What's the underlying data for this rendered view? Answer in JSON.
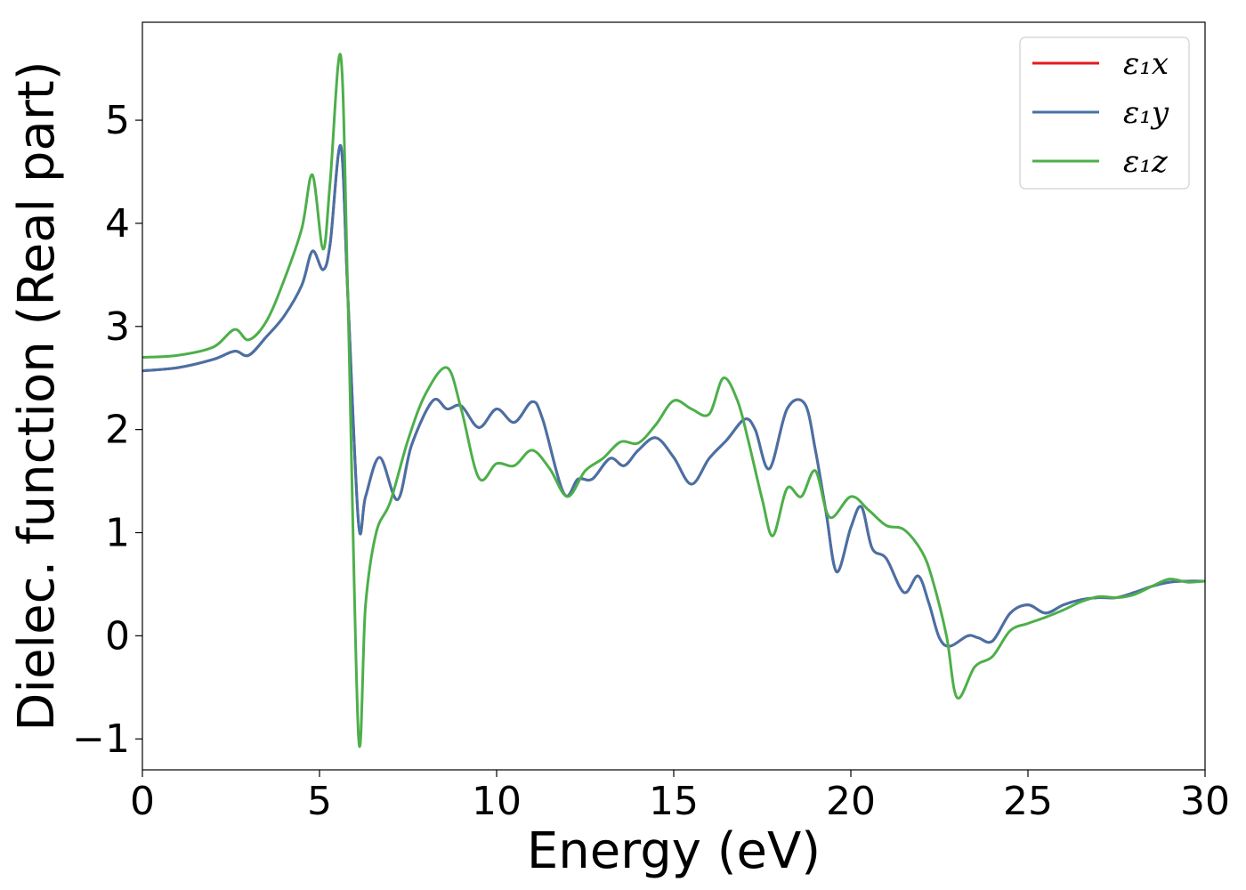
{
  "chart_data": {
    "type": "line",
    "title": "",
    "xlabel": "Energy (eV)",
    "ylabel": "Dielec. function (Real part)",
    "xlim": [
      0,
      30
    ],
    "ylim": [
      -1.3,
      5.95
    ],
    "xticks": [
      0,
      5,
      10,
      15,
      20,
      25,
      30
    ],
    "yticks": [
      -1,
      0,
      1,
      2,
      3,
      4,
      5
    ],
    "xtick_labels": [
      "0",
      "5",
      "10",
      "15",
      "20",
      "25",
      "30"
    ],
    "ytick_labels": [
      "−1",
      "0",
      "1",
      "2",
      "3",
      "4",
      "5"
    ],
    "grid": false,
    "legend_position": "top-right",
    "series": [
      {
        "name": "ε₁x",
        "color": "#e41a1c",
        "x": [
          0,
          1,
          2,
          2.6,
          3,
          3.5,
          4,
          4.5,
          4.8,
          5.1,
          5.3,
          5.6,
          5.8,
          6.1,
          6.3,
          6.7,
          7.2,
          7.6,
          8.2,
          8.6,
          9,
          9.5,
          10,
          10.5,
          11,
          11.3,
          11.9,
          12.3,
          12.7,
          13.2,
          13.6,
          14,
          14.5,
          15,
          15.5,
          16,
          16.5,
          17,
          17.3,
          17.7,
          18.2,
          18.7,
          19,
          19.3,
          19.6,
          20,
          20.3,
          20.6,
          21,
          21.5,
          21.9,
          22.2,
          22.5,
          22.8,
          23.3,
          23.6,
          24,
          24.5,
          25,
          25.5,
          26,
          26.5,
          27,
          27.5,
          28,
          28.5,
          29,
          29.5,
          30
        ],
        "y": [
          2.57,
          2.6,
          2.68,
          2.76,
          2.72,
          2.9,
          3.1,
          3.4,
          3.73,
          3.55,
          3.8,
          4.75,
          3.3,
          1.1,
          1.35,
          1.73,
          1.32,
          1.85,
          2.28,
          2.2,
          2.23,
          2.02,
          2.2,
          2.07,
          2.27,
          2.1,
          1.38,
          1.52,
          1.52,
          1.72,
          1.65,
          1.8,
          1.92,
          1.73,
          1.47,
          1.72,
          1.9,
          2.1,
          2.0,
          1.62,
          2.2,
          2.25,
          1.8,
          1.2,
          0.62,
          1.05,
          1.25,
          0.85,
          0.75,
          0.42,
          0.58,
          0.32,
          -0.02,
          -0.1,
          0.0,
          -0.02,
          -0.05,
          0.22,
          0.3,
          0.22,
          0.3,
          0.35,
          0.37,
          0.37,
          0.42,
          0.48,
          0.52,
          0.53,
          0.53
        ]
      },
      {
        "name": "ε₁y",
        "color": "#4572a7",
        "x": [
          0,
          1,
          2,
          2.6,
          3,
          3.5,
          4,
          4.5,
          4.8,
          5.1,
          5.3,
          5.6,
          5.8,
          6.1,
          6.3,
          6.7,
          7.2,
          7.6,
          8.2,
          8.6,
          9,
          9.5,
          10,
          10.5,
          11,
          11.3,
          11.9,
          12.3,
          12.7,
          13.2,
          13.6,
          14,
          14.5,
          15,
          15.5,
          16,
          16.5,
          17,
          17.3,
          17.7,
          18.2,
          18.7,
          19,
          19.3,
          19.6,
          20,
          20.3,
          20.6,
          21,
          21.5,
          21.9,
          22.2,
          22.5,
          22.8,
          23.3,
          23.6,
          24,
          24.5,
          25,
          25.5,
          26,
          26.5,
          27,
          27.5,
          28,
          28.5,
          29,
          29.5,
          30
        ],
        "y": [
          2.57,
          2.6,
          2.68,
          2.76,
          2.72,
          2.9,
          3.1,
          3.4,
          3.73,
          3.55,
          3.8,
          4.75,
          3.3,
          1.1,
          1.35,
          1.73,
          1.32,
          1.85,
          2.28,
          2.2,
          2.23,
          2.02,
          2.2,
          2.07,
          2.27,
          2.1,
          1.38,
          1.52,
          1.52,
          1.72,
          1.65,
          1.8,
          1.92,
          1.73,
          1.47,
          1.72,
          1.9,
          2.1,
          2.0,
          1.62,
          2.2,
          2.25,
          1.8,
          1.2,
          0.62,
          1.05,
          1.25,
          0.85,
          0.75,
          0.42,
          0.58,
          0.32,
          -0.02,
          -0.1,
          0.0,
          -0.02,
          -0.05,
          0.22,
          0.3,
          0.22,
          0.3,
          0.35,
          0.37,
          0.37,
          0.42,
          0.48,
          0.52,
          0.53,
          0.53
        ]
      },
      {
        "name": "ε₁z",
        "color": "#4daf4a",
        "x": [
          0,
          1,
          2,
          2.6,
          3,
          3.5,
          4,
          4.5,
          4.8,
          5.1,
          5.3,
          5.6,
          5.8,
          6.1,
          6.3,
          6.6,
          7,
          7.5,
          8,
          8.6,
          9,
          9.5,
          10,
          10.5,
          11,
          11.5,
          12,
          12.5,
          13,
          13.5,
          14,
          14.5,
          15,
          15.5,
          16,
          16.4,
          16.8,
          17.1,
          17.5,
          17.8,
          18.2,
          18.6,
          19,
          19.4,
          20,
          20.5,
          21,
          21.5,
          22,
          22.3,
          22.7,
          23,
          23.5,
          24,
          24.5,
          25,
          25.5,
          26,
          26.5,
          27,
          27.5,
          28,
          28.5,
          29,
          29.5,
          30
        ],
        "y": [
          2.7,
          2.72,
          2.8,
          2.97,
          2.87,
          3.05,
          3.45,
          3.95,
          4.47,
          3.75,
          4.4,
          5.62,
          3.3,
          -0.97,
          0.3,
          1.0,
          1.3,
          1.9,
          2.35,
          2.6,
          2.2,
          1.53,
          1.67,
          1.65,
          1.8,
          1.62,
          1.35,
          1.6,
          1.72,
          1.88,
          1.87,
          2.05,
          2.28,
          2.2,
          2.15,
          2.5,
          2.28,
          1.9,
          1.32,
          0.97,
          1.43,
          1.35,
          1.6,
          1.15,
          1.35,
          1.22,
          1.07,
          1.03,
          0.82,
          0.55,
          0.0,
          -0.6,
          -0.3,
          -0.2,
          0.05,
          0.12,
          0.18,
          0.25,
          0.33,
          0.38,
          0.37,
          0.4,
          0.48,
          0.55,
          0.52,
          0.53
        ]
      }
    ]
  }
}
